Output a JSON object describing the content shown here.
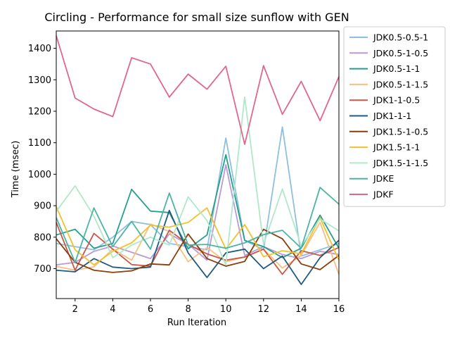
{
  "chart_data": {
    "type": "line",
    "title": "Circling - Performance for small size sunflow with GEN",
    "xlabel": "Run Iteration",
    "ylabel": "Time (msec)",
    "xlim": [
      1,
      16
    ],
    "ylim": [
      605,
      1455
    ],
    "xticks": [
      2,
      4,
      6,
      8,
      10,
      12,
      14,
      16
    ],
    "yticks": [
      700,
      800,
      900,
      1000,
      1100,
      1200,
      1300,
      1400
    ],
    "grid": false,
    "legend_position": "outside upper right",
    "x": [
      1,
      2,
      3,
      4,
      5,
      6,
      7,
      8,
      9,
      10,
      11,
      12,
      13,
      14,
      15,
      16
    ],
    "series": [
      {
        "name": "JDK0.5-0.5-1",
        "color": "#8fbfe0",
        "values": [
          780,
          770,
          760,
          800,
          850,
          840,
          780,
          770,
          760,
          1115,
          790,
          760,
          1150,
          740,
          760,
          780
        ]
      },
      {
        "name": "JDK0.5-1-0.5",
        "color": "#b99ad8",
        "values": [
          712,
          720,
          755,
          772,
          752,
          732,
          810,
          778,
          727,
          1030,
          742,
          770,
          745,
          732,
          755,
          745
        ]
      },
      {
        "name": "JDK0.5-1-1",
        "color": "#239f8c",
        "values": [
          807,
          825,
          765,
          780,
          952,
          883,
          878,
          763,
          807,
          1062,
          790,
          770,
          735,
          765,
          870,
          765
        ]
      },
      {
        "name": "JDK0.5-1-1.5",
        "color": "#f8c07f",
        "values": [
          707,
          695,
          706,
          762,
          727,
          842,
          818,
          722,
          767,
          722,
          737,
          762,
          702,
          742,
          847,
          682
        ]
      },
      {
        "name": "JDK1-1-0.5",
        "color": "#c9584a",
        "values": [
          847,
          695,
          812,
          762,
          713,
          708,
          822,
          777,
          747,
          727,
          737,
          762,
          682,
          757,
          742,
          767
        ]
      },
      {
        "name": "JDK1-1-1",
        "color": "#215a80",
        "values": [
          695,
          690,
          732,
          705,
          700,
          705,
          885,
          750,
          672,
          750,
          762,
          700,
          740,
          650,
          735,
          790
        ]
      },
      {
        "name": "JDK1.5-1-0.5",
        "color": "#8c3d0a",
        "values": [
          795,
          720,
          695,
          688,
          693,
          715,
          712,
          810,
          732,
          708,
          723,
          825,
          795,
          715,
          697,
          742
        ]
      },
      {
        "name": "JDK1.5-1-1",
        "color": "#f2c12e",
        "values": [
          897,
          760,
          712,
          755,
          782,
          838,
          832,
          847,
          893,
          762,
          840,
          738,
          757,
          747,
          862,
          727
        ]
      },
      {
        "name": "JDK1.5-1-1.5",
        "color": "#b0e8c8",
        "values": [
          882,
          963,
          867,
          735,
          775,
          800,
          775,
          928,
          853,
          712,
          1245,
          777,
          953,
          772,
          858,
          820
        ]
      },
      {
        "name": "JDKE",
        "color": "#4db3a4",
        "values": [
          862,
          720,
          893,
          770,
          850,
          762,
          940,
          775,
          777,
          765,
          782,
          808,
          822,
          765,
          958,
          905
        ]
      },
      {
        "name": "JDKF",
        "color": "#e06690",
        "values": [
          1440,
          1242,
          1207,
          1183,
          1370,
          1350,
          1245,
          1318,
          1270,
          1343,
          1095,
          1345,
          1190,
          1295,
          1170,
          1310
        ]
      }
    ]
  }
}
